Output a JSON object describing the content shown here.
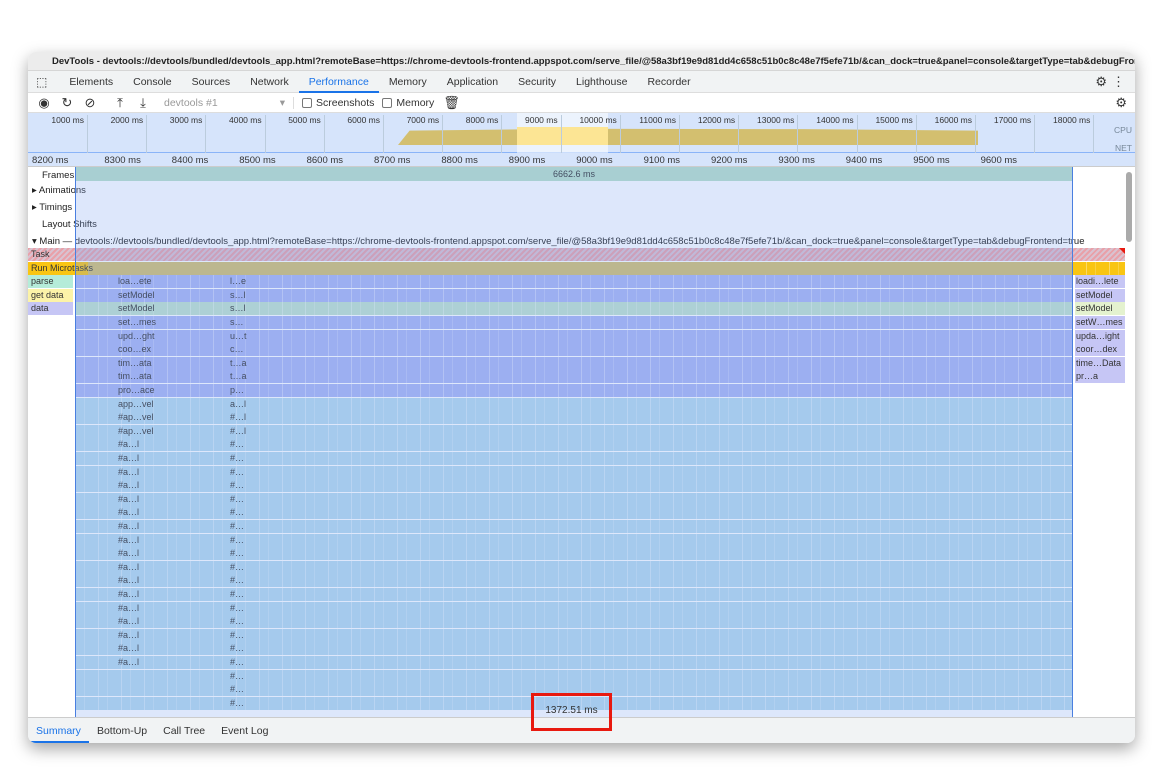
{
  "window": {
    "title": "DevTools - devtools://devtools/bundled/devtools_app.html?remoteBase=https://chrome-devtools-frontend.appspot.com/serve_file/@58a3bf19e9d81dd4c658c51b0c8c48e7f5efe71b/&can_dock=true&panel=console&targetType=tab&debugFrontend=true"
  },
  "tabs": [
    "Elements",
    "Console",
    "Sources",
    "Network",
    "Performance",
    "Memory",
    "Application",
    "Security",
    "Lighthouse",
    "Recorder"
  ],
  "active_tab": "Performance",
  "toolbar": {
    "profile_select": "devtools #1",
    "screenshots": "Screenshots",
    "memory": "Memory"
  },
  "overview": {
    "ticks": [
      "1000 ms",
      "2000 ms",
      "3000 ms",
      "4000 ms",
      "5000 ms",
      "6000 ms",
      "7000 ms",
      "8000 ms",
      "9000 ms",
      "10000 ms",
      "11000 ms",
      "12000 ms",
      "13000 ms",
      "14000 ms",
      "15000 ms",
      "16000 ms",
      "17000 ms",
      "18000 ms"
    ],
    "cpu_label": "CPU",
    "net_label": "NET"
  },
  "ruler": [
    "8200 ms",
    "8300 ms",
    "8400 ms",
    "8500 ms",
    "8600 ms",
    "8700 ms",
    "8800 ms",
    "8900 ms",
    "9000 ms",
    "9100 ms",
    "9200 ms",
    "9300 ms",
    "9400 ms",
    "9500 ms",
    "9600 ms"
  ],
  "tracks": {
    "frames": "Frames",
    "frames_value": "6662.6 ms",
    "animations": "Animations",
    "timings": "Timings",
    "layout_shifts": "Layout Shifts",
    "main": "Main — devtools://devtools/bundled/devtools_app.html?remoteBase=https://chrome-devtools-frontend.appspot.com/serve_file/@58a3bf19e9d81dd4c658c51b0c8c48e7f5efe71b/&can_dock=true&panel=console&targetType=tab&debugFrontend=true"
  },
  "flame": {
    "left_labels": [
      "Task",
      "Run Microtasks",
      "parse",
      "get data",
      "data"
    ],
    "rows": [
      {
        "a": "loa…ete",
        "b": "l…e",
        "r": "loadi…lete"
      },
      {
        "a": "setModel",
        "b": "s…l",
        "r": "setModel"
      },
      {
        "a": "setModel",
        "b": "s…l",
        "r": "setModel"
      },
      {
        "a": "set…mes",
        "b": "s…",
        "r": "setW…mes"
      },
      {
        "a": "upd…ght",
        "b": "u…t",
        "r": "upda…ight"
      },
      {
        "a": "coo…ex",
        "b": "c…",
        "r": "coor…dex"
      },
      {
        "a": "tim…ata",
        "b": "t…a",
        "r": "time…Data"
      },
      {
        "a": "tim…ata",
        "b": "t…a",
        "r": "pr…a"
      },
      {
        "a": "pro…ace",
        "b": "p…",
        "r": ""
      },
      {
        "a": "app…vel",
        "b": "a…l",
        "r": ""
      },
      {
        "a": "#ap…vel",
        "b": "#…l",
        "r": ""
      },
      {
        "a": "#ap…vel",
        "b": "#…l",
        "r": ""
      },
      {
        "a": "#a…l",
        "b": "#…",
        "r": ""
      },
      {
        "a": "#a…l",
        "b": "#…",
        "r": ""
      },
      {
        "a": "#a…l",
        "b": "#…",
        "r": ""
      },
      {
        "a": "#a…l",
        "b": "#…",
        "r": ""
      },
      {
        "a": "#a…l",
        "b": "#…",
        "r": ""
      },
      {
        "a": "#a…l",
        "b": "#…",
        "r": ""
      },
      {
        "a": "#a…l",
        "b": "#…",
        "r": ""
      },
      {
        "a": "#a…l",
        "b": "#…",
        "r": ""
      },
      {
        "a": "#a…l",
        "b": "#…",
        "r": ""
      },
      {
        "a": "#a…l",
        "b": "#…",
        "r": ""
      },
      {
        "a": "#a…l",
        "b": "#…",
        "r": ""
      },
      {
        "a": "#a…l",
        "b": "#…",
        "r": ""
      },
      {
        "a": "#a…l",
        "b": "#…",
        "r": ""
      },
      {
        "a": "#a…l",
        "b": "#…",
        "r": ""
      },
      {
        "a": "#a…l",
        "b": "#…",
        "r": ""
      },
      {
        "a": "#a…l",
        "b": "#…",
        "r": ""
      },
      {
        "a": "#a…l",
        "b": "#…",
        "r": ""
      },
      {
        "a": "",
        "b": "#…",
        "r": ""
      },
      {
        "a": "",
        "b": "#…",
        "r": ""
      },
      {
        "a": "",
        "b": "#…",
        "r": ""
      }
    ]
  },
  "selection_duration": "1372.51 ms",
  "bottom_tabs": [
    "Summary",
    "Bottom-Up",
    "Call Tree",
    "Event Log"
  ],
  "colors": {
    "accent": "#1a73e8",
    "task": "#e88a8a",
    "microtasks": "#d3bf6f",
    "js": "#a9b4f2",
    "js_light": "#b5d8ec",
    "highlight": "#e8190f"
  }
}
